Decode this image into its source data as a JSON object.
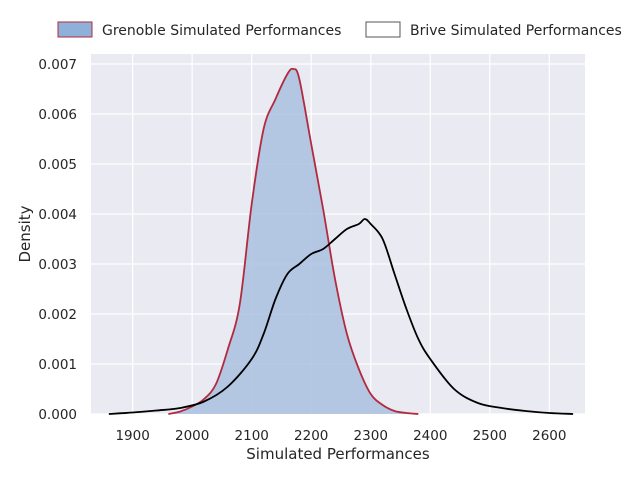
{
  "chart_data": {
    "type": "area",
    "title": "",
    "xlabel": "Simulated Performances",
    "ylabel": "Density",
    "xlim": [
      1830,
      2660
    ],
    "ylim": [
      0,
      0.0072
    ],
    "x_ticks": [
      1900,
      2000,
      2100,
      2200,
      2300,
      2400,
      2500,
      2600
    ],
    "x_tick_labels": [
      "1900",
      "2000",
      "2100",
      "2200",
      "2300",
      "2400",
      "2500",
      "2600"
    ],
    "y_ticks": [
      0,
      0.001,
      0.002,
      0.003,
      0.004,
      0.005,
      0.006,
      0.007
    ],
    "y_tick_labels": [
      "0.000",
      "0.001",
      "0.002",
      "0.003",
      "0.004",
      "0.005",
      "0.006",
      "0.007"
    ],
    "grid": true,
    "legend_position": "top",
    "series": [
      {
        "name": "Grenoble Simulated Performances",
        "kind": "filled-density",
        "fill_color": "#a9c0df",
        "line_color": "#b22a3e",
        "x": [
          1960,
          1980,
          2000,
          2020,
          2040,
          2060,
          2080,
          2100,
          2120,
          2140,
          2160,
          2170,
          2180,
          2200,
          2220,
          2240,
          2260,
          2280,
          2300,
          2320,
          2340,
          2360,
          2380
        ],
        "y": [
          0.0,
          5e-05,
          0.00015,
          0.0003,
          0.0006,
          0.0013,
          0.0022,
          0.0042,
          0.0057,
          0.0063,
          0.0068,
          0.0069,
          0.0067,
          0.0054,
          0.0041,
          0.0027,
          0.0016,
          0.0009,
          0.0004,
          0.00018,
          6e-05,
          2e-05,
          0.0
        ]
      },
      {
        "name": "Brive Simulated Performances",
        "kind": "line-density",
        "line_color": "#000000",
        "x": [
          1860,
          1900,
          1940,
          1980,
          2020,
          2060,
          2100,
          2120,
          2140,
          2160,
          2180,
          2200,
          2220,
          2240,
          2260,
          2280,
          2290,
          2300,
          2320,
          2340,
          2360,
          2380,
          2400,
          2440,
          2480,
          2520,
          2560,
          2600,
          2640
        ],
        "y": [
          0.0,
          3e-05,
          7e-05,
          0.00012,
          0.00025,
          0.00055,
          0.0011,
          0.0016,
          0.0023,
          0.0028,
          0.003,
          0.0032,
          0.0033,
          0.0035,
          0.0037,
          0.0038,
          0.0039,
          0.0038,
          0.0035,
          0.0028,
          0.0021,
          0.0015,
          0.0011,
          0.0005,
          0.00022,
          0.00012,
          6e-05,
          2e-05,
          0.0
        ]
      }
    ]
  }
}
